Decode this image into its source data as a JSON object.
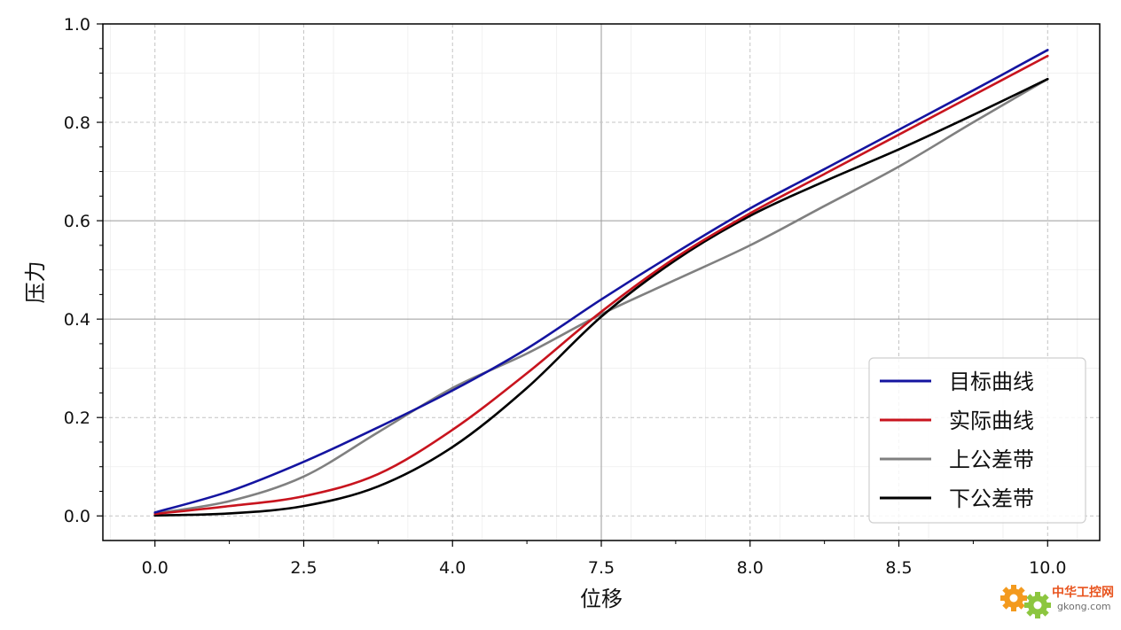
{
  "chart_data": {
    "type": "line",
    "xlabel": "位移",
    "ylabel": "压力",
    "xlim": [
      -0.35,
      6.35
    ],
    "ylim": [
      -0.05,
      1.0
    ],
    "x_ticks": [
      {
        "pos": 0,
        "label": "0.0"
      },
      {
        "pos": 1,
        "label": "2.5"
      },
      {
        "pos": 2,
        "label": "4.0"
      },
      {
        "pos": 3,
        "label": "7.5"
      },
      {
        "pos": 4,
        "label": "8.0"
      },
      {
        "pos": 5,
        "label": "8.5"
      },
      {
        "pos": 6,
        "label": "10.0"
      }
    ],
    "y_ticks": [
      {
        "value": 0.0,
        "label": "0.0"
      },
      {
        "value": 0.2,
        "label": "0.2"
      },
      {
        "value": 0.4,
        "label": "0.4"
      },
      {
        "value": 0.6,
        "label": "0.6"
      },
      {
        "value": 0.8,
        "label": "0.8"
      },
      {
        "value": 1.0,
        "label": "1.0"
      }
    ],
    "grid": true,
    "legend_position": "bottom-right",
    "series": [
      {
        "name": "目标曲线",
        "color": "#1414a0",
        "x": [
          0,
          0.5,
          1,
          1.5,
          2,
          2.5,
          3,
          3.5,
          4,
          4.5,
          5,
          5.5,
          6
        ],
        "y": [
          0.007,
          0.05,
          0.11,
          0.18,
          0.255,
          0.34,
          0.44,
          0.535,
          0.625,
          0.705,
          0.785,
          0.865,
          0.947
        ]
      },
      {
        "name": "实际曲线",
        "color": "#c8141e",
        "x": [
          0,
          0.5,
          1,
          1.5,
          2,
          2.5,
          3,
          3.5,
          4,
          4.5,
          5,
          5.5,
          6
        ],
        "y": [
          0.004,
          0.02,
          0.04,
          0.085,
          0.175,
          0.29,
          0.415,
          0.525,
          0.615,
          0.695,
          0.775,
          0.855,
          0.935
        ]
      },
      {
        "name": "上公差带",
        "color": "#808080",
        "x": [
          0,
          0.5,
          1,
          1.5,
          2,
          2.5,
          3,
          3.5,
          4,
          4.5,
          5,
          5.5,
          6
        ],
        "y": [
          0.005,
          0.03,
          0.08,
          0.17,
          0.26,
          0.33,
          0.41,
          0.48,
          0.55,
          0.63,
          0.71,
          0.8,
          0.888
        ]
      },
      {
        "name": "下公差带",
        "color": "#000000",
        "x": [
          0,
          0.5,
          1,
          1.5,
          2,
          2.5,
          3,
          3.5,
          4,
          4.5,
          5,
          5.5,
          6
        ],
        "y": [
          0.001,
          0.005,
          0.02,
          0.06,
          0.14,
          0.26,
          0.405,
          0.52,
          0.61,
          0.68,
          0.745,
          0.815,
          0.888
        ]
      }
    ]
  },
  "watermark": {
    "title": "中华工控网",
    "url": "gkong.com",
    "colors": {
      "gear_orange": "#f39a1e",
      "gear_green": "#8cc63f",
      "title": "#e8541e",
      "url": "#6e6e6e"
    }
  }
}
